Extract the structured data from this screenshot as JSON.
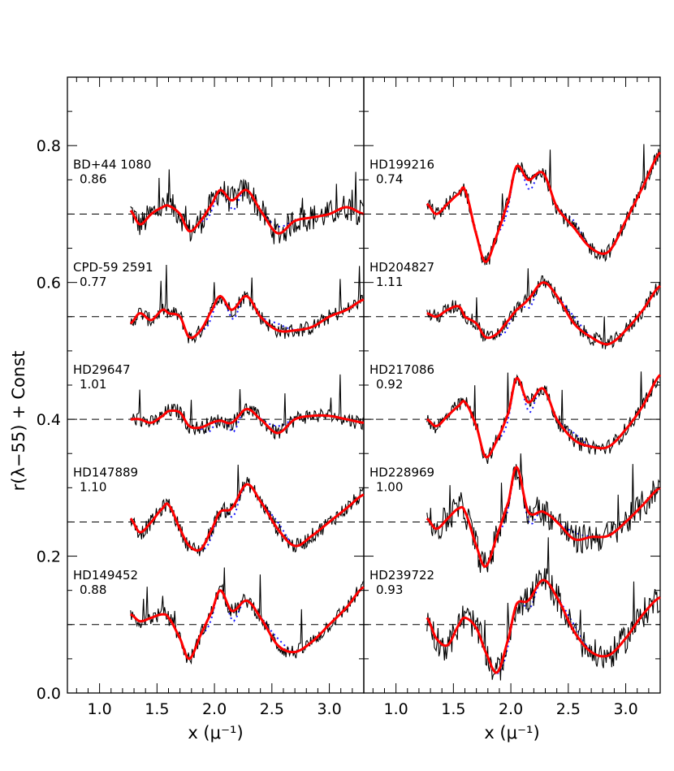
{
  "chart_data": {
    "type": "line",
    "ylabel": "r(λ−55) + Const",
    "ylim": [
      0.0,
      0.9
    ],
    "xlim": [
      0.72,
      3.3
    ],
    "panels": [
      {
        "xlabel": "x (μ⁻¹)",
        "xticks": [
          "1.0",
          "1.5",
          "2.0",
          "2.5",
          "3.0"
        ],
        "yticks": [
          "0.0",
          "0.2",
          "0.4",
          "0.6",
          "0.8"
        ],
        "stars": [
          {
            "name": "BD+44 1080",
            "value": "0.86",
            "offset": 0.7
          },
          {
            "name": "CPD-59 2591",
            "value": "0.77",
            "offset": 0.55
          },
          {
            "name": "HD29647",
            "value": "1.01",
            "offset": 0.4
          },
          {
            "name": "HD147889",
            "value": "1.10",
            "offset": 0.25
          },
          {
            "name": "HD149452",
            "value": "0.88",
            "offset": 0.1
          }
        ]
      },
      {
        "xlabel": "x (μ⁻¹)",
        "xticks": [
          "1.0",
          "1.5",
          "2.0",
          "2.5",
          "3.0"
        ],
        "stars": [
          {
            "name": "HD199216",
            "value": "0.74",
            "offset": 0.7
          },
          {
            "name": "HD204827",
            "value": "1.11",
            "offset": 0.55
          },
          {
            "name": "HD217086",
            "value": "0.92",
            "offset": 0.4
          },
          {
            "name": "HD228969",
            "value": "1.00",
            "offset": 0.25
          },
          {
            "name": "HD239722",
            "value": "0.93",
            "offset": 0.1
          }
        ]
      }
    ],
    "fit_x": [
      1.27,
      1.35,
      1.45,
      1.55,
      1.6,
      1.7,
      1.78,
      1.88,
      1.98,
      2.05,
      2.15,
      2.28,
      2.4,
      2.55,
      2.7,
      2.85,
      3.0,
      3.15,
      3.3
    ],
    "series": [
      {
        "panel": 0,
        "star": "BD+44 1080",
        "y": [
          0.705,
          0.685,
          0.7,
          0.71,
          0.712,
          0.7,
          0.675,
          0.69,
          0.715,
          0.735,
          0.72,
          0.735,
          0.705,
          0.672,
          0.69,
          0.695,
          0.7,
          0.71,
          0.7
        ]
      },
      {
        "panel": 0,
        "star": "CPD-59 2591",
        "y": [
          0.54,
          0.555,
          0.545,
          0.56,
          0.555,
          0.55,
          0.52,
          0.53,
          0.56,
          0.58,
          0.56,
          0.58,
          0.55,
          0.53,
          0.53,
          0.535,
          0.55,
          0.56,
          0.575
        ]
      },
      {
        "panel": 0,
        "star": "HD29647",
        "y": [
          0.4,
          0.4,
          0.395,
          0.405,
          0.412,
          0.41,
          0.39,
          0.388,
          0.395,
          0.398,
          0.395,
          0.415,
          0.4,
          0.38,
          0.4,
          0.405,
          0.405,
          0.4,
          0.395
        ]
      },
      {
        "panel": 0,
        "star": "HD147889",
        "y": [
          0.255,
          0.235,
          0.25,
          0.27,
          0.275,
          0.24,
          0.215,
          0.21,
          0.24,
          0.265,
          0.27,
          0.305,
          0.28,
          0.24,
          0.215,
          0.23,
          0.25,
          0.27,
          0.29
        ]
      },
      {
        "panel": 0,
        "star": "HD149452",
        "y": [
          0.115,
          0.105,
          0.11,
          0.115,
          0.11,
          0.08,
          0.05,
          0.085,
          0.12,
          0.15,
          0.12,
          0.135,
          0.11,
          0.07,
          0.06,
          0.075,
          0.1,
          0.125,
          0.155
        ]
      },
      {
        "panel": 1,
        "star": "HD199216",
        "y": [
          0.715,
          0.7,
          0.715,
          0.73,
          0.735,
          0.67,
          0.63,
          0.67,
          0.72,
          0.77,
          0.75,
          0.76,
          0.71,
          0.68,
          0.65,
          0.645,
          0.69,
          0.74,
          0.79
        ]
      },
      {
        "panel": 1,
        "star": "HD204827",
        "y": [
          0.555,
          0.55,
          0.56,
          0.565,
          0.55,
          0.54,
          0.52,
          0.525,
          0.545,
          0.56,
          0.575,
          0.6,
          0.58,
          0.54,
          0.52,
          0.51,
          0.53,
          0.56,
          0.595
        ]
      },
      {
        "panel": 1,
        "star": "HD217086",
        "y": [
          0.4,
          0.39,
          0.405,
          0.42,
          0.425,
          0.39,
          0.345,
          0.37,
          0.41,
          0.46,
          0.425,
          0.445,
          0.4,
          0.37,
          0.36,
          0.36,
          0.385,
          0.42,
          0.465
        ]
      },
      {
        "panel": 1,
        "star": "HD228969",
        "y": [
          0.255,
          0.24,
          0.255,
          0.27,
          0.265,
          0.215,
          0.185,
          0.23,
          0.28,
          0.33,
          0.265,
          0.265,
          0.25,
          0.225,
          0.228,
          0.23,
          0.25,
          0.275,
          0.3
        ]
      },
      {
        "panel": 1,
        "star": "HD239722",
        "y": [
          0.11,
          0.08,
          0.07,
          0.1,
          0.11,
          0.095,
          0.06,
          0.03,
          0.08,
          0.13,
          0.135,
          0.165,
          0.14,
          0.09,
          0.06,
          0.055,
          0.08,
          0.115,
          0.14
        ]
      }
    ],
    "colors": {
      "observed": "#000000",
      "fit": "#ff0000",
      "model": "#1a1aff",
      "baseline": "#000000"
    },
    "grid": false
  }
}
